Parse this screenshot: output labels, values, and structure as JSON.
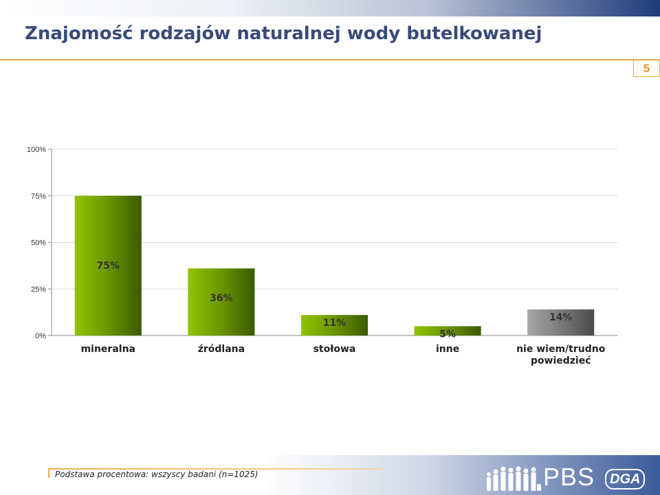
{
  "slide": {
    "title": "Znajomość rodzajów naturalnej wody butelkowanej",
    "page_number": "5"
  },
  "footer": {
    "note": "Podstawa procentowa: wszyscy badani (n=1025)",
    "logo_pbs": "PBS",
    "logo_dga": "DGA"
  },
  "colors": {
    "title": "#3a4a78",
    "accent": "#e8b04c",
    "bar_green": "#8fc400",
    "bar_green_dark": "#3a5a00",
    "bar_gray": "#a8a8a8",
    "bar_gray_dark": "#4a4a4a"
  },
  "chart_data": {
    "type": "bar",
    "title": "",
    "xlabel": "",
    "ylabel": "",
    "ylim": [
      0,
      100
    ],
    "yticks": [
      "0%",
      "25%",
      "50%",
      "75%",
      "100%"
    ],
    "grid": true,
    "categories": [
      "mineralna",
      "źródlana",
      "stołowa",
      "inne",
      "nie wiem/trudno powiedzieć"
    ],
    "category_lines": [
      [
        "mineralna"
      ],
      [
        "źródlana"
      ],
      [
        "stołowa"
      ],
      [
        "inne"
      ],
      [
        "nie wiem/trudno",
        "powiedzieć"
      ]
    ],
    "values": [
      75,
      36,
      11,
      5,
      14
    ],
    "labels": [
      "75%",
      "36%",
      "11%",
      "5%",
      "14%"
    ],
    "bar_styles": [
      "green",
      "green",
      "green",
      "green",
      "gray"
    ]
  }
}
